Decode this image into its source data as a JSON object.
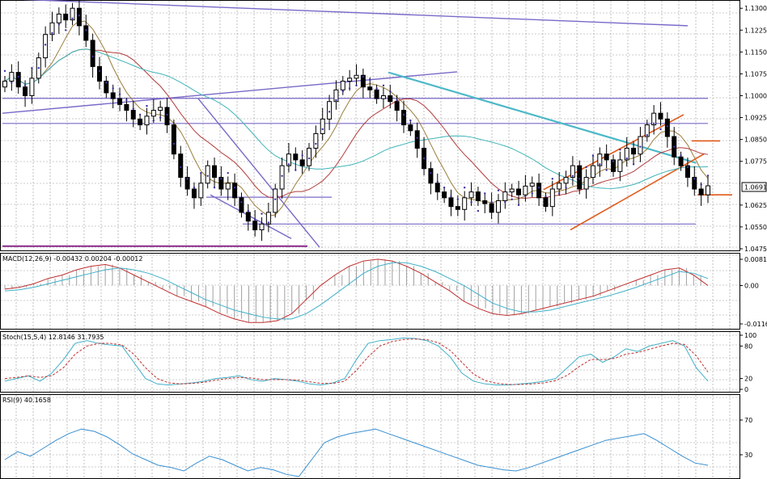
{
  "colors": {
    "background": "#ffffff",
    "grid": "#9a9a9a",
    "candle": "#000000",
    "sar": "#3a2fa0",
    "ma_fast": "#9b7d3c",
    "ma_mid": "#b23a3a",
    "ma_slow": "#3fb4b8",
    "trendline": "#7a68c8",
    "trendline_alt": "#4cb8c8",
    "channel": "#e05a1a",
    "macd_line": "#c03030",
    "macd_signal": "#40b0c8",
    "macd_hist": "#a0a0a0",
    "stoch_main": "#40b0c8",
    "stoch_signal": "#c03030",
    "rsi": "#3a90d0"
  },
  "chart_data": [
    {
      "type": "candlestick",
      "title": "",
      "ylim": [
        1.0475,
        1.132
      ],
      "y_ticks": [
        "1.1300",
        "1.1225",
        "1.1150",
        "1.1075",
        "1.1000",
        "1.0925",
        "1.0850",
        "1.0775",
        "1.0691",
        "1.0625",
        "1.0550",
        "1.0475"
      ],
      "current_price_label": "1.0691",
      "current_price": 1.0691,
      "candles_close": [
        1.105,
        1.108,
        1.103,
        1.1,
        1.106,
        1.113,
        1.121,
        1.125,
        1.128,
        1.126,
        1.13,
        1.124,
        1.119,
        1.11,
        1.105,
        1.101,
        1.099,
        1.097,
        1.095,
        1.092,
        1.09,
        1.093,
        1.095,
        1.096,
        1.09,
        1.08,
        1.072,
        1.068,
        1.065,
        1.07,
        1.076,
        1.072,
        1.068,
        1.07,
        1.065,
        1.06,
        1.057,
        1.054,
        1.056,
        1.06,
        1.068,
        1.076,
        1.08,
        1.078,
        1.076,
        1.082,
        1.087,
        1.092,
        1.098,
        1.102,
        1.105,
        1.106,
        1.107,
        1.103,
        1.102,
        1.099,
        1.1,
        1.098,
        1.095,
        1.09,
        1.088,
        1.082,
        1.075,
        1.07,
        1.067,
        1.065,
        1.062,
        1.061,
        1.065,
        1.067,
        1.064,
        1.063,
        1.06,
        1.064,
        1.067,
        1.068,
        1.066,
        1.069,
        1.07,
        1.065,
        1.062,
        1.068,
        1.07,
        1.072,
        1.076,
        1.068,
        1.072,
        1.076,
        1.08,
        1.078,
        1.074,
        1.078,
        1.082,
        1.08,
        1.086,
        1.09,
        1.094,
        1.092,
        1.086,
        1.079,
        1.076,
        1.072,
        1.068,
        1.066,
        1.0691
      ]
    },
    {
      "type": "line",
      "title": "MACD(12,26,9) -0.00432 0.00204 -0.00012",
      "ylim": [
        -0.0116,
        0.00817
      ],
      "y_ticks": [
        "0.00817",
        "0.00",
        "-0.0116"
      ],
      "series": [
        {
          "name": "",
          "values": [
            -0.001,
            -0.0005,
            0.0005,
            0.002,
            0.003,
            0.0045,
            0.0055,
            0.006,
            0.005,
            0.003,
            0.001,
            -0.001,
            -0.003,
            -0.0045,
            -0.006,
            -0.008,
            -0.0095,
            -0.0105,
            -0.0105,
            -0.01,
            -0.008,
            -0.004,
            0.0,
            0.003,
            0.0055,
            0.007,
            0.0075,
            0.007,
            0.0055,
            0.0035,
            0.001,
            -0.0015,
            -0.0045,
            -0.0065,
            -0.008,
            -0.0085,
            -0.008,
            -0.007,
            -0.006,
            -0.005,
            -0.004,
            -0.003,
            -0.0015,
            0.0,
            0.0015,
            0.003,
            0.0045,
            0.005,
            0.003,
            0.0
          ]
        },
        {
          "name": "",
          "values": [
            -0.0015,
            -0.0012,
            -0.0005,
            0.0005,
            0.0015,
            0.0025,
            0.0035,
            0.0045,
            0.005,
            0.0045,
            0.0035,
            0.002,
            0.0,
            -0.002,
            -0.004,
            -0.0055,
            -0.007,
            -0.008,
            -0.009,
            -0.0095,
            -0.0095,
            -0.008,
            -0.0055,
            -0.0025,
            0.0005,
            0.0035,
            0.0055,
            0.0065,
            0.0065,
            0.0055,
            0.004,
            0.002,
            0.0,
            -0.0025,
            -0.005,
            -0.0065,
            -0.0075,
            -0.0075,
            -0.007,
            -0.006,
            -0.005,
            -0.004,
            -0.003,
            -0.0018,
            -0.0005,
            0.001,
            0.0025,
            0.004,
            0.0035,
            0.002
          ]
        }
      ]
    },
    {
      "type": "line",
      "title": "Stoch(15,5,4) 12.8146 31.7935",
      "ylim": [
        0,
        100
      ],
      "y_ticks": [
        "100",
        "80",
        "20",
        "0"
      ],
      "series": [
        {
          "name": "",
          "values": [
            15,
            20,
            25,
            15,
            30,
            55,
            85,
            90,
            85,
            82,
            80,
            50,
            20,
            10,
            8,
            10,
            12,
            15,
            20,
            22,
            25,
            18,
            15,
            20,
            18,
            15,
            10,
            8,
            12,
            20,
            55,
            85,
            90,
            92,
            95,
            94,
            90,
            80,
            60,
            30,
            15,
            10,
            8,
            8,
            10,
            12,
            15,
            20,
            40,
            60,
            65,
            50,
            60,
            75,
            70,
            80,
            85,
            90,
            80,
            40,
            15
          ]
        },
        {
          "name": "",
          "values": [
            20,
            22,
            25,
            22,
            25,
            40,
            65,
            80,
            85,
            85,
            82,
            65,
            40,
            20,
            12,
            10,
            11,
            13,
            17,
            20,
            22,
            21,
            18,
            18,
            18,
            17,
            14,
            11,
            11,
            15,
            35,
            60,
            80,
            88,
            92,
            93,
            92,
            86,
            72,
            50,
            28,
            16,
            11,
            9,
            9,
            10,
            12,
            16,
            26,
            42,
            55,
            55,
            57,
            65,
            68,
            74,
            80,
            85,
            83,
            62,
            32
          ]
        }
      ]
    },
    {
      "type": "line",
      "title": "RSI(9) 40.1658",
      "ylim": [
        0,
        100
      ],
      "y_ticks": [
        "70",
        "30"
      ],
      "series": [
        {
          "name": "",
          "values": [
            45,
            52,
            48,
            55,
            62,
            68,
            72,
            70,
            65,
            58,
            50,
            45,
            40,
            38,
            35,
            42,
            48,
            45,
            40,
            35,
            38,
            36,
            32,
            30,
            45,
            60,
            65,
            68,
            70,
            72,
            68,
            64,
            60,
            56,
            52,
            48,
            44,
            40,
            38,
            36,
            35,
            38,
            42,
            46,
            50,
            54,
            58,
            62,
            64,
            66,
            68,
            62,
            55,
            48,
            42,
            40
          ]
        }
      ]
    }
  ]
}
